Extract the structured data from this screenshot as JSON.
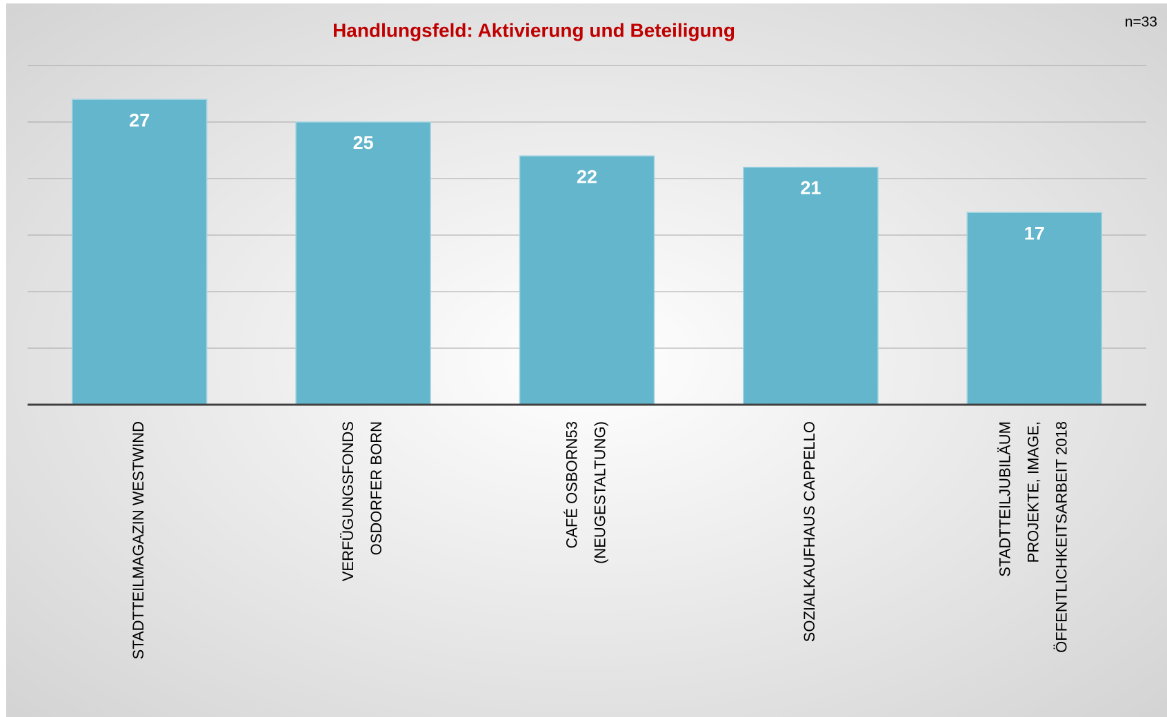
{
  "chart_data": {
    "type": "bar",
    "title": "Handlungsfeld: Aktivierung und Beteiligung",
    "annotation": "n=33",
    "categories": [
      [
        "STADTTEILMAGAZIN WESTWIND"
      ],
      [
        "VERFÜGUNGSFONDS",
        "OSDORFER BORN"
      ],
      [
        "CAFÉ OSBORN53",
        "(NEUGESTALTUNG)"
      ],
      [
        "SOZIALKAUFHAUS CAPPELLO"
      ],
      [
        "STADTTEILJUBILÄUM",
        "PROJEKTE, IMAGE,",
        "ÖFFENTLICHKEITSARBEIT 2018"
      ]
    ],
    "values": [
      27,
      25,
      22,
      21,
      17
    ],
    "color": "#64b6cd",
    "ylim": [
      0,
      30
    ],
    "yticks": [
      0,
      5,
      10,
      15,
      20,
      25,
      30
    ],
    "grid": true
  }
}
